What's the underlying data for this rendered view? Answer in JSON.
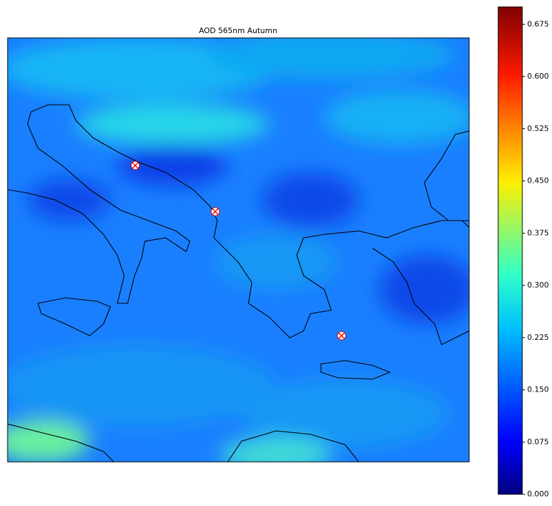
{
  "map": {
    "title": "AOD 565nm Autumn",
    "colorbar": {
      "lim": [
        0,
        0.7
      ],
      "ticks": [
        {
          "value": 0,
          "label": "0.000"
        },
        {
          "value": 0.075,
          "label": "0.075"
        },
        {
          "value": 0.15,
          "label": "0.150"
        },
        {
          "value": 0.225,
          "label": "0.225"
        },
        {
          "value": 0.3,
          "label": "0.300"
        },
        {
          "value": 0.375,
          "label": "0.375"
        },
        {
          "value": 0.45,
          "label": "0.450"
        },
        {
          "value": 0.525,
          "label": "0.525"
        },
        {
          "value": 0.6,
          "label": "0.600"
        },
        {
          "value": 0.675,
          "label": "0.675"
        }
      ]
    }
  }
}
